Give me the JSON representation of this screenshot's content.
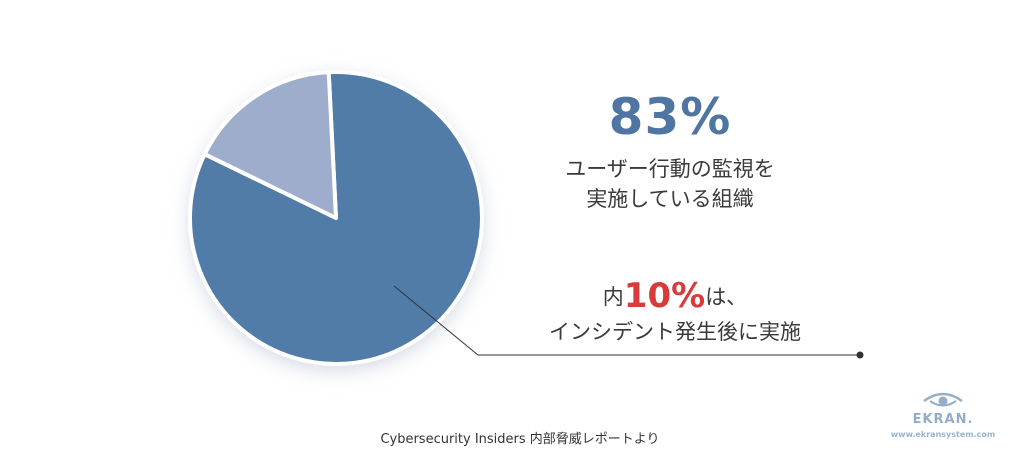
{
  "chart_data": {
    "type": "pie",
    "slices": [
      {
        "label": "ユーザー行動の監視を実施している組織",
        "value": 83,
        "color": "#517ca8"
      },
      {
        "label": "",
        "value": 17,
        "color": "#9eadcb"
      }
    ],
    "annotations": {
      "main_value": "83%",
      "main_label_lines": [
        "ユーザー行動の監視を",
        "実施している組織"
      ],
      "sub_prefix": "内",
      "sub_value": "10%",
      "sub_suffix": "は、",
      "sub_line2": "インシデント発生後に実施"
    },
    "source": "Cybersecurity Insiders 内部脅威レポートより"
  },
  "logo": {
    "word": "EKRAN.",
    "url": "www.ekransystem.com",
    "color": "#93aec8"
  },
  "colors": {
    "accent": "#4f76a3",
    "highlight": "#d83b3b",
    "leader_line": "#333333"
  }
}
